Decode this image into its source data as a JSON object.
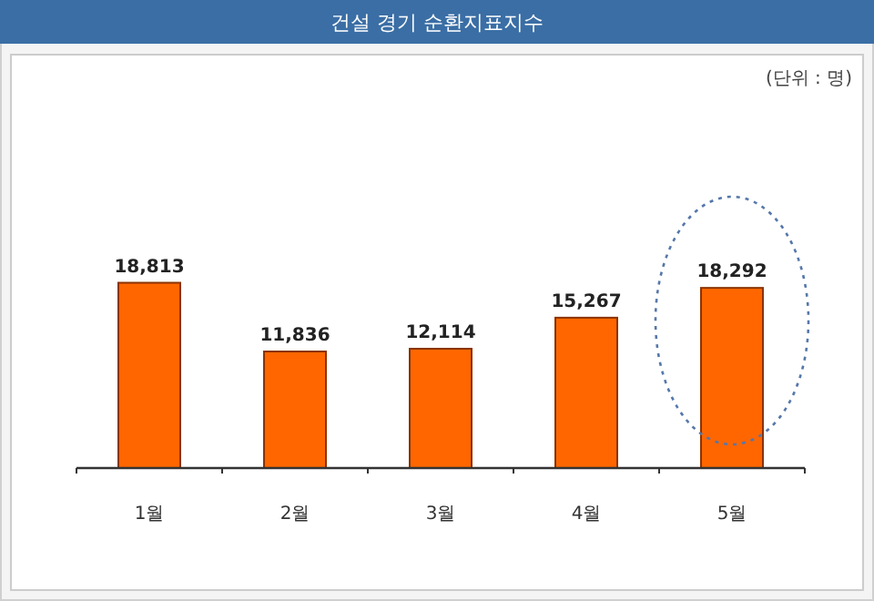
{
  "chart_data": {
    "type": "bar",
    "title": "건설 경기 순환지표지수",
    "annotations": [
      "(단위 : 명)"
    ],
    "categories": [
      "1월",
      "2월",
      "3월",
      "4월",
      "5월"
    ],
    "values": [
      18813,
      11836,
      12114,
      15267,
      18292
    ],
    "value_labels": [
      "18,813",
      "11,836",
      "12,114",
      "15,267",
      "18,292"
    ],
    "color": "#ff6600"
  }
}
